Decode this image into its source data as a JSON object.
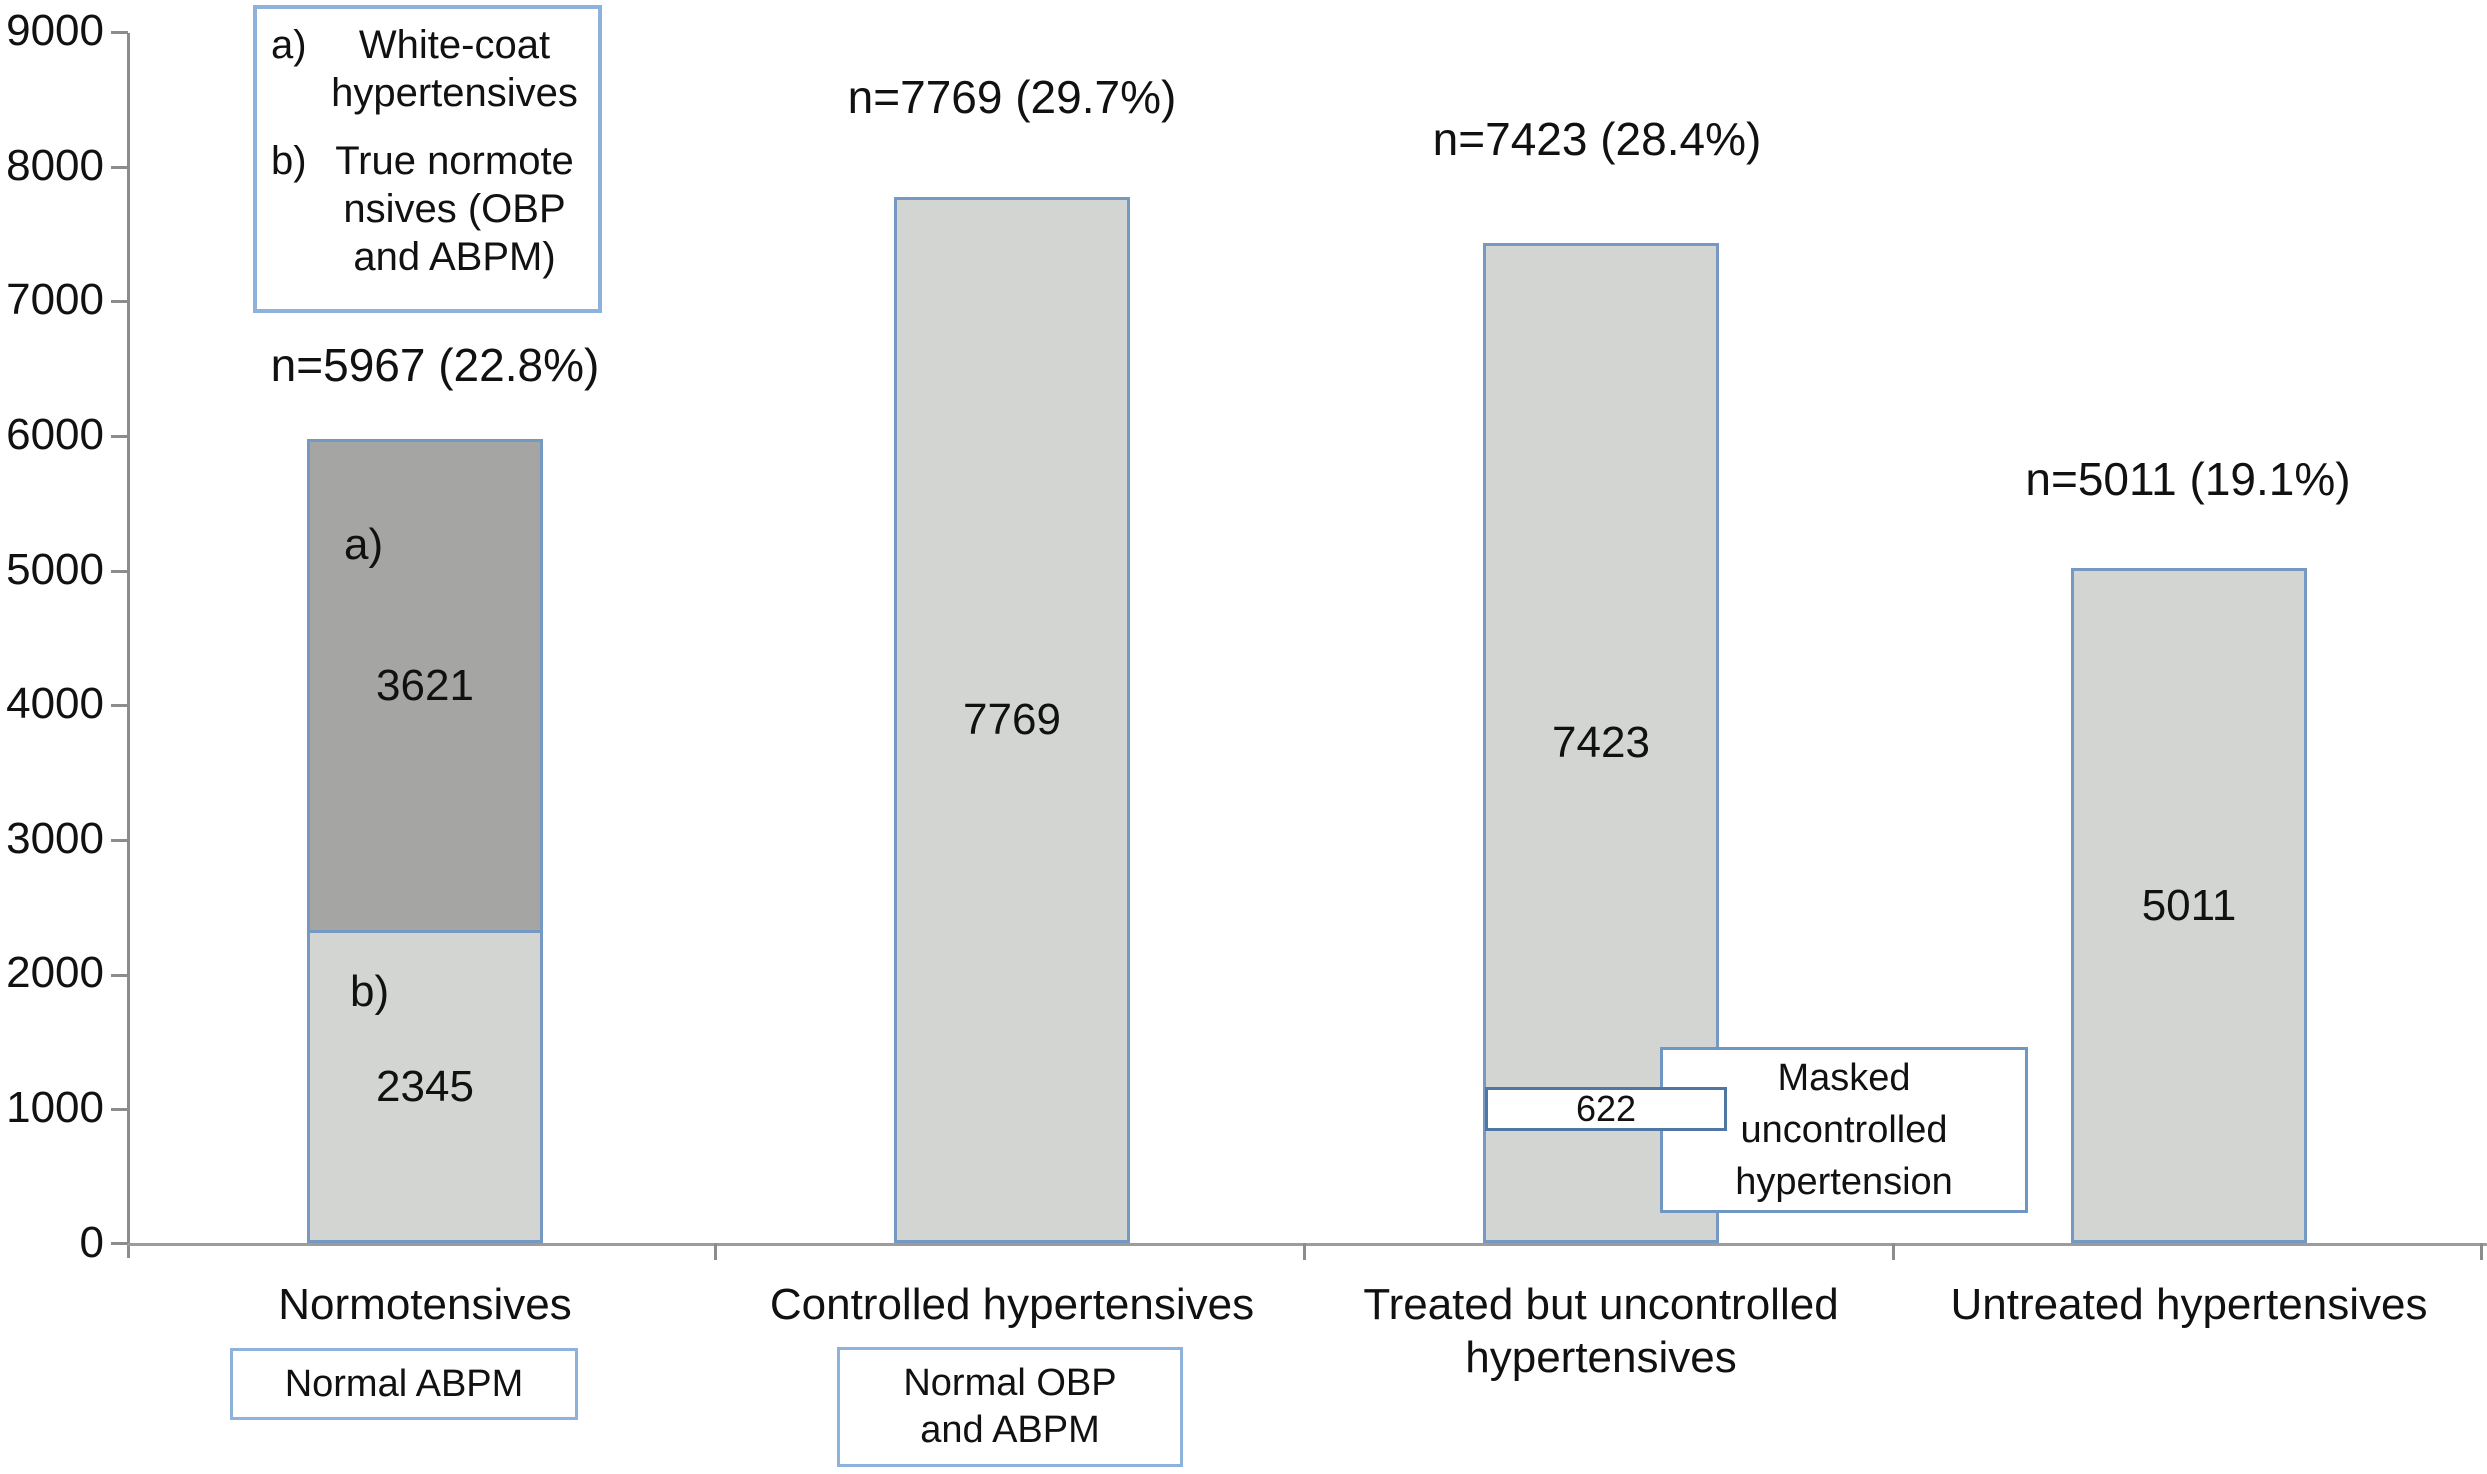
{
  "colors": {
    "bar_fill": "#d3d5d2",
    "bar_fill_dark": "#a5a6a3",
    "bar_border": "#7699c4",
    "box_border": "#8db3dc",
    "masked_border": "#7096c4",
    "callout_border": "#4f77a3",
    "axis": "#8c8c8c",
    "baseline": "#9c9c9c"
  },
  "y_axis": {
    "ticks": [
      "9000",
      "8000",
      "7000",
      "6000",
      "5000",
      "4000",
      "3000",
      "2000",
      "1000",
      "0"
    ]
  },
  "legend": {
    "items": [
      {
        "marker": "a)",
        "lines": [
          "White-coat",
          "hypertensives"
        ],
        "text": "a) White-coat hypertensives"
      },
      {
        "marker": "b)",
        "lines": [
          "True normote",
          "nsives (OBP",
          "and ABPM)"
        ],
        "text": "b) True normotensives (OBP and ABPM)"
      }
    ]
  },
  "chart_data": {
    "type": "bar",
    "title": "",
    "xlabel": "",
    "ylabel": "",
    "ylim": [
      0,
      9000
    ],
    "ytick_interval": 1000,
    "grid": false,
    "stacked": true,
    "categories": [
      "Normotensives",
      "Controlled hypertensives",
      "Treated but uncontrolled hypertensives",
      "Untreated hypertensives"
    ],
    "bars": [
      {
        "category": "Normotensives",
        "category_lines": [
          "Normotensives"
        ],
        "total": 5967,
        "annotation": "n=5967 (22.8%)",
        "segments": [
          {
            "marker": "a)",
            "name": "White-coat hypertensives",
            "value": 3621
          },
          {
            "marker": "b)",
            "name": "True normotensives (OBP and ABPM)",
            "value": 2345
          }
        ]
      },
      {
        "category": "Controlled hypertensives",
        "category_lines": [
          "Controlled hypertensives"
        ],
        "total": 7769,
        "annotation": "n=7769 (29.7%)",
        "segments": [
          {
            "name": "Controlled hypertensives",
            "value": 7769
          }
        ]
      },
      {
        "category": "Treated but uncontrolled hypertensives",
        "category_lines": [
          "Treated but uncontrolled",
          "hypertensives"
        ],
        "total": 7423,
        "annotation": "n=7423 (28.4%)",
        "segments": [
          {
            "name": "Treated but uncontrolled hypertensives",
            "value": 7423
          }
        ],
        "callout": {
          "value": 622,
          "label": "Masked uncontrolled hypertension",
          "label_lines": [
            "Masked",
            "uncontrolled",
            "hypertension"
          ]
        }
      },
      {
        "category": "Untreated hypertensives",
        "category_lines": [
          "Untreated hypertensives"
        ],
        "total": 5011,
        "annotation": "n=5011 (19.1%)",
        "segments": [
          {
            "name": "Untreated hypertensives",
            "value": 5011
          }
        ]
      }
    ],
    "footnote_boxes": [
      {
        "under": "Normotensives",
        "lines": [
          "Normal ABPM"
        ],
        "text": "Normal ABPM"
      },
      {
        "under": "Controlled hypertensives",
        "lines": [
          "Normal OBP",
          "and ABPM"
        ],
        "text": "Normal OBP and ABPM"
      }
    ]
  }
}
